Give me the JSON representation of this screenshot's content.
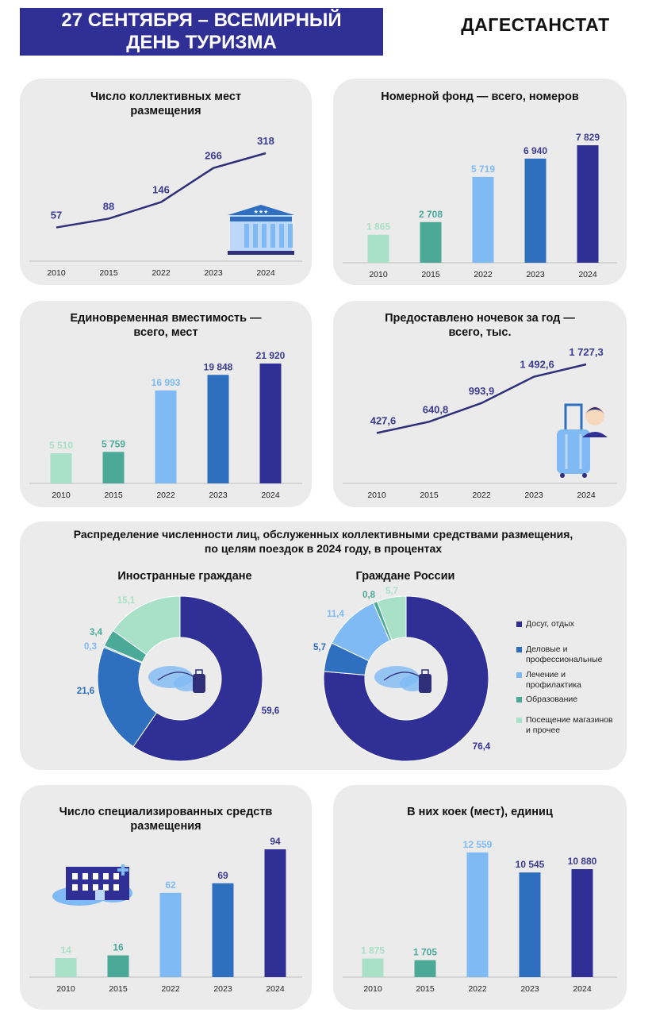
{
  "header": {
    "title_line1": "27 СЕНТЯБРЯ – ВСЕМИРНЫЙ",
    "title_line2": "ДЕНЬ ТУРИЗМА",
    "organization": "ДАГЕСТАНСТАТ"
  },
  "colors": {
    "banner": "#2f2f96",
    "c2010": "#a8e0c8",
    "c2015": "#4aaa97",
    "c2022": "#7fbaf5",
    "c2023": "#2f6fbf",
    "c2024": "#2f2f96",
    "line": "#2f2f7a",
    "label_dark": "#3b3b8f",
    "card": "#ebebeb"
  },
  "icons": {
    "panel1": "hotel-building-icon",
    "panel4": "traveler-with-suitcase-icon",
    "donut": "world-map-suitcase-icon",
    "panel8": "sanatorium-building-icon"
  },
  "chart_data": [
    {
      "id": "panel1",
      "type": "line",
      "title_lines": [
        "Число коллективных мест",
        "размещения"
      ],
      "categories": [
        "2010",
        "2015",
        "2022",
        "2023",
        "2024"
      ],
      "values": [
        57,
        88,
        146,
        266,
        318
      ],
      "labels": [
        "57",
        "88",
        "146",
        "266",
        "318"
      ]
    },
    {
      "id": "panel2",
      "type": "bar",
      "title_lines": [
        "Номерной фонд — всего, номеров"
      ],
      "categories": [
        "2010",
        "2015",
        "2022",
        "2023",
        "2024"
      ],
      "values": [
        1865,
        2708,
        5719,
        6940,
        7829
      ],
      "labels": [
        "1 865",
        "2 708",
        "5 719",
        "6 940",
        "7 829"
      ]
    },
    {
      "id": "panel3",
      "type": "bar",
      "title_lines": [
        "Единовременная вместимость —",
        "всего, мест"
      ],
      "categories": [
        "2010",
        "2015",
        "2022",
        "2023",
        "2024"
      ],
      "values": [
        5510,
        5759,
        16993,
        19848,
        21920
      ],
      "labels": [
        "5 510",
        "5 759",
        "16 993",
        "19 848",
        "21 920"
      ]
    },
    {
      "id": "panel4",
      "type": "line",
      "title_lines": [
        "Предоставлено ночевок за год —",
        "всего, тыс."
      ],
      "categories": [
        "2010",
        "2015",
        "2022",
        "2023",
        "2024"
      ],
      "values": [
        427.6,
        640.8,
        993.9,
        1492.6,
        1727.3
      ],
      "labels": [
        "427,6",
        "640,8",
        "993,9",
        "1 492,6",
        "1 727,3"
      ]
    },
    {
      "id": "donut-foreign",
      "type": "pie",
      "title": "Иностранные граждане",
      "series": [
        "Досуг, отдых",
        "Деловые и профессиональные",
        "Лечение и профилактика",
        "Образование",
        "Посещение магазинов и прочее"
      ],
      "values": [
        59.6,
        21.6,
        0.3,
        3.4,
        15.1
      ],
      "labels": [
        "59,6",
        "21,6",
        "0,3",
        "3,4",
        "15,1"
      ]
    },
    {
      "id": "donut-russia",
      "type": "pie",
      "title": "Граждане России",
      "series": [
        "Досуг, отдых",
        "Деловые и профессиональные",
        "Лечение и профилактика",
        "Образование",
        "Посещение магазинов и прочее"
      ],
      "values": [
        76.4,
        5.7,
        11.4,
        0.8,
        5.7
      ],
      "labels": [
        "76,4",
        "5,7",
        "11,4",
        "0,8",
        "5,7"
      ]
    },
    {
      "id": "panel7",
      "type": "bar",
      "title_lines": [
        "Число специализированных средств",
        "размещения"
      ],
      "categories": [
        "2010",
        "2015",
        "2022",
        "2023",
        "2024"
      ],
      "values": [
        14,
        16,
        62,
        69,
        94
      ],
      "labels": [
        "14",
        "16",
        "62",
        "69",
        "94"
      ]
    },
    {
      "id": "panel8",
      "type": "bar",
      "title_lines": [
        "В них коек (мест), единиц"
      ],
      "categories": [
        "2010",
        "2015",
        "2022",
        "2023",
        "2024"
      ],
      "values": [
        1875,
        1705,
        12559,
        10545,
        10880
      ],
      "labels": [
        "1 875",
        "1 705",
        "12 559",
        "10 545",
        "10 880"
      ]
    }
  ],
  "distribution": {
    "title_line1": "Распределение численности лиц, обслуженных коллективными средствами размещения,",
    "title_line2": "по целям поездок в 2024 году, в процентах",
    "legend": [
      {
        "label_lines": [
          "Досуг, отдых"
        ],
        "color": "#2f2f96"
      },
      {
        "label_lines": [
          "Деловые и",
          "профессиональные"
        ],
        "color": "#2f6fbf"
      },
      {
        "label_lines": [
          "Лечение и",
          "профилактика"
        ],
        "color": "#7fbaf5"
      },
      {
        "label_lines": [
          "Образование"
        ],
        "color": "#4aaa97"
      },
      {
        "label_lines": [
          "Посещение магазинов",
          "и прочее"
        ],
        "color": "#a8e0c8"
      }
    ]
  }
}
